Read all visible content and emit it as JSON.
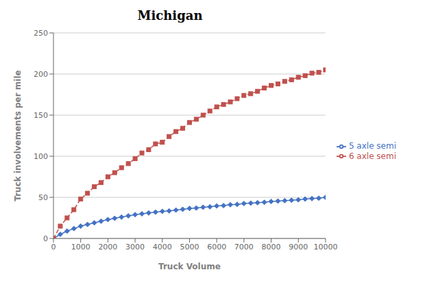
{
  "chart_data": {
    "type": "line",
    "title": "Michigan",
    "x_label": "Truck Volume",
    "y_label": "Truck involvements per mile",
    "xlim": [
      0,
      10000
    ],
    "ylim": [
      0,
      250
    ],
    "xticks": [
      0,
      1000,
      2000,
      3000,
      4000,
      5000,
      6000,
      7000,
      8000,
      9000,
      10000
    ],
    "yticks": [
      0,
      50,
      100,
      150,
      200,
      250
    ],
    "grid": "y",
    "legend": "right",
    "x": [
      0,
      250,
      500,
      750,
      1000,
      1250,
      1500,
      1750,
      2000,
      2250,
      2500,
      2750,
      3000,
      3250,
      3500,
      3750,
      4000,
      4250,
      4500,
      4750,
      5000,
      5250,
      5500,
      5750,
      6000,
      6250,
      6500,
      6750,
      7000,
      7250,
      7500,
      7750,
      8000,
      8250,
      8500,
      8750,
      9000,
      9250,
      9500,
      9750,
      10000
    ],
    "series": [
      {
        "name": "5 axle semi",
        "color": "#4472C4",
        "marker": "diamond",
        "line_style": "solid",
        "values": [
          0,
          5,
          9,
          12,
          15,
          17,
          19,
          21,
          23,
          24.5,
          26,
          27.5,
          29,
          30,
          31,
          32,
          33,
          33.5,
          34.5,
          35.5,
          36.5,
          37,
          38,
          38.5,
          39.5,
          40,
          41,
          41.5,
          42.5,
          43,
          43.5,
          44,
          45,
          45.5,
          46,
          46.5,
          47,
          48,
          48.5,
          49,
          50
        ]
      },
      {
        "name": "6 axle semi",
        "color": "#C0504D",
        "marker": "square",
        "line_style": "dashed",
        "values": [
          0,
          15,
          25,
          35,
          48,
          55,
          63,
          68,
          75,
          80,
          86,
          91,
          97,
          104,
          108,
          115,
          117,
          124,
          130,
          134,
          141,
          145,
          150,
          155,
          160,
          163,
          166,
          170,
          174,
          176,
          179,
          183,
          186,
          188,
          191,
          193,
          196,
          198,
          201,
          202,
          205
        ]
      }
    ]
  }
}
